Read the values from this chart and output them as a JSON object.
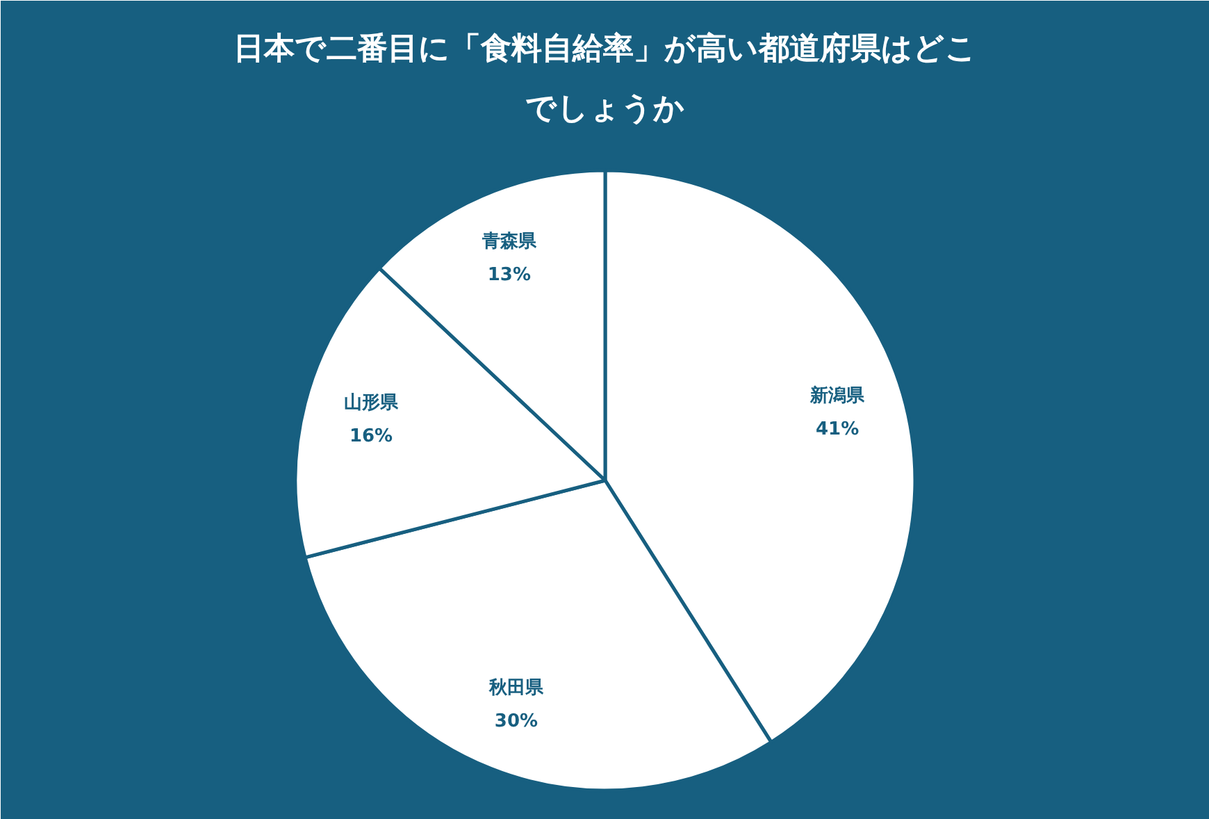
{
  "chart_data": {
    "type": "pie",
    "title": "日本で二番目に「食料自給率」が高い都道府県はどこでしょうか",
    "categories": [
      "新潟県",
      "秋田県",
      "山形県",
      "青森県"
    ],
    "values": [
      41,
      30,
      16,
      13
    ],
    "colors": [
      "#ffffff",
      "#ffffff",
      "#ffffff",
      "#ffffff"
    ],
    "value_labels": [
      "41%",
      "30%",
      "16%",
      "13%"
    ]
  }
}
